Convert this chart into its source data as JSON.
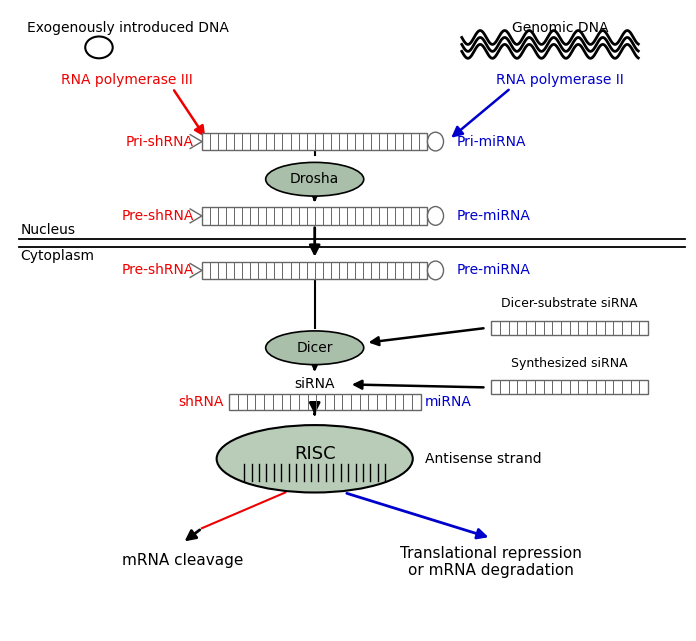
{
  "fig_width": 6.96,
  "fig_height": 6.41,
  "dpi": 100,
  "background": "#ffffff",
  "colors": {
    "red": "#ee0000",
    "blue": "#0000cc",
    "black": "#000000",
    "gray_ellipse": "#aabfaa",
    "risc_fill": "#b8ccb8",
    "duplex_fill": "#ffffff",
    "duplex_lines": "#666666"
  },
  "texts": {
    "exog_dna": "Exogenously introduced DNA",
    "genomic_dna": "Genomic DNA",
    "rna_pol3": "RNA polymerase III",
    "rna_pol2": "RNA polymerase II",
    "pri_shrna": "Pri-shRNA",
    "pri_mirna": "Pri-miRNA",
    "pre_shrna1": "Pre-shRNA",
    "pre_mirna1": "Pre-miRNA",
    "nucleus": "Nucleus",
    "cytoplasm": "Cytoplasm",
    "pre_shrna2": "Pre-shRNA",
    "pre_mirna2": "Pre-miRNA",
    "dicer_substrate": "Dicer-substrate siRNA",
    "synthesized_sirna": "Synthesized siRNA",
    "sirna": "siRNA",
    "shrna": "shRNA",
    "mirna": "miRNA",
    "antisense": "Antisense strand",
    "risc": "RISC",
    "drosha": "Drosha",
    "dicer": "Dicer",
    "mrna_cleavage": "mRNA cleavage",
    "translational": "Translational repression\nor mRNA degradation"
  }
}
